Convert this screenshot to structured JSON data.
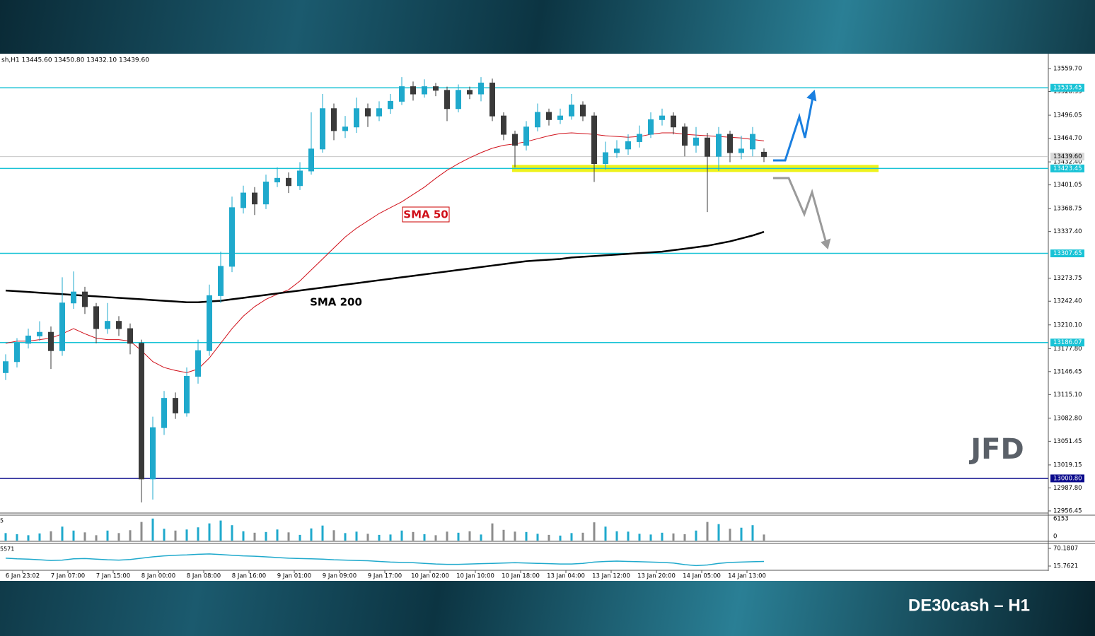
{
  "chart_data": {
    "type": "candlestick",
    "title": "DE30cash – H1",
    "logo": "JFD",
    "header_text": "sh,H1  13445.60 13450.80 13432.10 13439.60",
    "volume_header": "5",
    "indicator_header": "5571",
    "ylim": [
      12954.5,
      13578.0
    ],
    "yticks": [
      {
        "value": 13559.7,
        "label": "13559.70"
      },
      13528.35,
      13496.05,
      {
        "value": 13464.7,
        "label": "13464.70"
      },
      {
        "value": 13432.4,
        "label": "13432.40"
      },
      13401.05,
      13368.75,
      {
        "value": 13337.4,
        "label": "13337.40"
      },
      13273.75,
      {
        "value": 13242.4,
        "label": "13242.40"
      },
      {
        "value": 13210.1,
        "label": "13210.10"
      },
      {
        "value": 13177.8,
        "label": "13177.80"
      },
      13146.45,
      {
        "value": 13115.1,
        "label": "13115.10"
      },
      {
        "value": 13082.8,
        "label": "13082.80"
      },
      13051.45,
      13019.15,
      {
        "value": 12987.8,
        "label": "12987.80"
      },
      12956.45
    ],
    "xlabels": [
      "6 Jan 23:02",
      "7 Jan 07:00",
      "7 Jan 15:00",
      "8 Jan 00:00",
      "8 Jan 08:00",
      "8 Jan 16:00",
      "9 Jan 01:00",
      "9 Jan 09:00",
      "9 Jan 17:00",
      "10 Jan 02:00",
      "10 Jan 10:00",
      "10 Jan 18:00",
      "13 Jan 04:00",
      "13 Jan 12:00",
      "13 Jan 20:00",
      "14 Jan 05:00",
      "14 Jan 13:00"
    ],
    "up_color": "#1fa9cc",
    "down_color": "#3a3a3a",
    "open": [
      13145,
      13160,
      13185,
      13195,
      13200,
      13175,
      13240,
      13255,
      13235,
      13205,
      13215,
      13205,
      13185,
      13000,
      13070,
      13110,
      13090,
      13140,
      13175,
      13250,
      13290,
      13370,
      13390,
      13375,
      13405,
      13410,
      13400,
      13420,
      13450,
      13505,
      13475,
      13480,
      13505,
      13495,
      13505,
      13515,
      13535,
      13525,
      13535,
      13530,
      13505,
      13530,
      13525,
      13540,
      13495,
      13470,
      13455,
      13480,
      13500,
      13490,
      13495,
      13510,
      13495,
      13430,
      13445,
      13450,
      13460,
      13470,
      13490,
      13495,
      13480,
      13455,
      13465,
      13440,
      13470,
      13445,
      13450,
      13445.6
    ],
    "high": [
      13170,
      13192,
      13205,
      13215,
      13208,
      13275,
      13283,
      13262,
      13240,
      13240,
      13222,
      13212,
      13190,
      13085,
      13120,
      13118,
      13152,
      13190,
      13265,
      13310,
      13385,
      13400,
      13398,
      13415,
      13425,
      13418,
      13432,
      13500,
      13525,
      13512,
      13495,
      13520,
      13512,
      13515,
      13525,
      13548,
      13542,
      13545,
      13540,
      13535,
      13538,
      13535,
      13548,
      13546,
      13500,
      13475,
      13488,
      13512,
      13505,
      13505,
      13525,
      13515,
      13500,
      13460,
      13462,
      13470,
      13482,
      13500,
      13505,
      13500,
      13485,
      13480,
      13472,
      13480,
      13475,
      13468,
      13480,
      13450.8
    ],
    "low": [
      13135,
      13152,
      13178,
      13188,
      13150,
      13168,
      13232,
      13225,
      13185,
      13198,
      13195,
      13170,
      12968,
      12972,
      13060,
      13082,
      13085,
      13130,
      13168,
      13240,
      13282,
      13362,
      13360,
      13368,
      13398,
      13390,
      13394,
      13415,
      13445,
      13462,
      13465,
      13472,
      13480,
      13488,
      13498,
      13510,
      13516,
      13520,
      13522,
      13488,
      13500,
      13518,
      13515,
      13488,
      13462,
      13425,
      13448,
      13474,
      13482,
      13484,
      13490,
      13488,
      13405,
      13422,
      13438,
      13442,
      13452,
      13465,
      13482,
      13470,
      13440,
      13445,
      13364,
      13420,
      13432,
      13436,
      13440,
      13432.1
    ],
    "close": [
      13160,
      13185,
      13195,
      13200,
      13175,
      13240,
      13255,
      13235,
      13205,
      13215,
      13205,
      13185,
      13000,
      13070,
      13110,
      13090,
      13140,
      13175,
      13250,
      13290,
      13370,
      13390,
      13375,
      13405,
      13410,
      13400,
      13420,
      13450,
      13505,
      13475,
      13480,
      13505,
      13495,
      13505,
      13515,
      13535,
      13525,
      13535,
      13530,
      13505,
      13530,
      13525,
      13540,
      13495,
      13470,
      13455,
      13480,
      13500,
      13490,
      13495,
      13510,
      13495,
      13430,
      13445,
      13450,
      13460,
      13470,
      13490,
      13495,
      13480,
      13455,
      13465,
      13440,
      13470,
      13445,
      13450,
      13470,
      13439.6
    ],
    "series": [
      {
        "name": "SMA 50",
        "color": "#d0101a",
        "values": [
          13185,
          13188,
          13188,
          13190,
          13192,
          13198,
          13205,
          13198,
          13192,
          13190,
          13190,
          13188,
          13175,
          13160,
          13152,
          13148,
          13145,
          13150,
          13165,
          13185,
          13205,
          13222,
          13235,
          13245,
          13252,
          13258,
          13270,
          13285,
          13300,
          13315,
          13330,
          13342,
          13352,
          13362,
          13370,
          13378,
          13388,
          13398,
          13410,
          13421,
          13430,
          13438,
          13445,
          13451,
          13455,
          13457,
          13460,
          13464,
          13468,
          13471,
          13472,
          13471,
          13470,
          13468,
          13467,
          13466,
          13467,
          13470,
          13472,
          13472,
          13470,
          13469,
          13468,
          13467,
          13466,
          13465,
          13463,
          13461
        ]
      },
      {
        "name": "SMA 200",
        "color": "#000000",
        "values": [
          13257,
          13256,
          13255,
          13254,
          13253,
          13252,
          13251,
          13250,
          13249,
          13248,
          13247,
          13246,
          13245,
          13244,
          13243,
          13242,
          13241,
          13241,
          13242,
          13243,
          13245,
          13247,
          13249,
          13251,
          13253,
          13255,
          13257,
          13259,
          13261,
          13263,
          13265,
          13267,
          13269,
          13271,
          13273,
          13275,
          13277,
          13279,
          13281,
          13283,
          13285,
          13287,
          13289,
          13291,
          13293,
          13295,
          13297,
          13298,
          13299,
          13300,
          13302,
          13303,
          13304,
          13305,
          13306,
          13307,
          13308,
          13309,
          13310,
          13312,
          13314,
          13316,
          13318,
          13321,
          13324,
          13328,
          13332,
          13337
        ]
      }
    ],
    "levels": [
      {
        "value": 13533.45,
        "color": "#19c3d6"
      },
      {
        "value": 13423.45,
        "color": "#19c3d6"
      },
      {
        "value": 13307.65,
        "color": "#19c3d6"
      },
      {
        "value": 13186.07,
        "color": "#19c3d6"
      },
      {
        "value": 13000.8,
        "label": "13000.80",
        "color": "#0a0a8c"
      }
    ],
    "current_price": {
      "value": 13439.6,
      "label": "13439.60"
    },
    "volume": [
      2100,
      1800,
      1500,
      2000,
      2600,
      3900,
      2800,
      2300,
      1500,
      2800,
      2100,
      2900,
      5200,
      6153,
      3300,
      2800,
      3100,
      3700,
      4800,
      5600,
      4300,
      2600,
      2200,
      2400,
      3100,
      2300,
      1600,
      3400,
      4200,
      2900,
      2100,
      2500,
      1900,
      1600,
      1700,
      2800,
      2400,
      1800,
      1500,
      2500,
      2200,
      2600,
      1700,
      4800,
      3000,
      2500,
      2400,
      1900,
      1600,
      1400,
      2100,
      2200,
      5100,
      3900,
      2600,
      2500,
      1900,
      1700,
      2200,
      2000,
      1800,
      2800,
      5200,
      4600,
      3300,
      3600,
      4300,
      1700
    ],
    "volume_ylim": [
      0,
      6900
    ],
    "volume_ticks": [
      6153,
      0
    ],
    "indicator": [
      40,
      38,
      37,
      35,
      33,
      34,
      38,
      39,
      37,
      35,
      34,
      36,
      40,
      44,
      47,
      49,
      50,
      52,
      53,
      51,
      49,
      47,
      46,
      44,
      42,
      40,
      39,
      38,
      37,
      35,
      34,
      33,
      32,
      30,
      28,
      27,
      26,
      24,
      22,
      21,
      21,
      22,
      23,
      24,
      25,
      26,
      25,
      24,
      23,
      22,
      22,
      24,
      28,
      30,
      31,
      30,
      29,
      28,
      27,
      25,
      20,
      17,
      19,
      24,
      27,
      28,
      29,
      30
    ],
    "indicator_color": "#1fa9cc",
    "indicator_ylim": [
      2.7,
      85.4
    ],
    "indicator_ticks": [
      70.1807,
      15.7621
    ]
  }
}
